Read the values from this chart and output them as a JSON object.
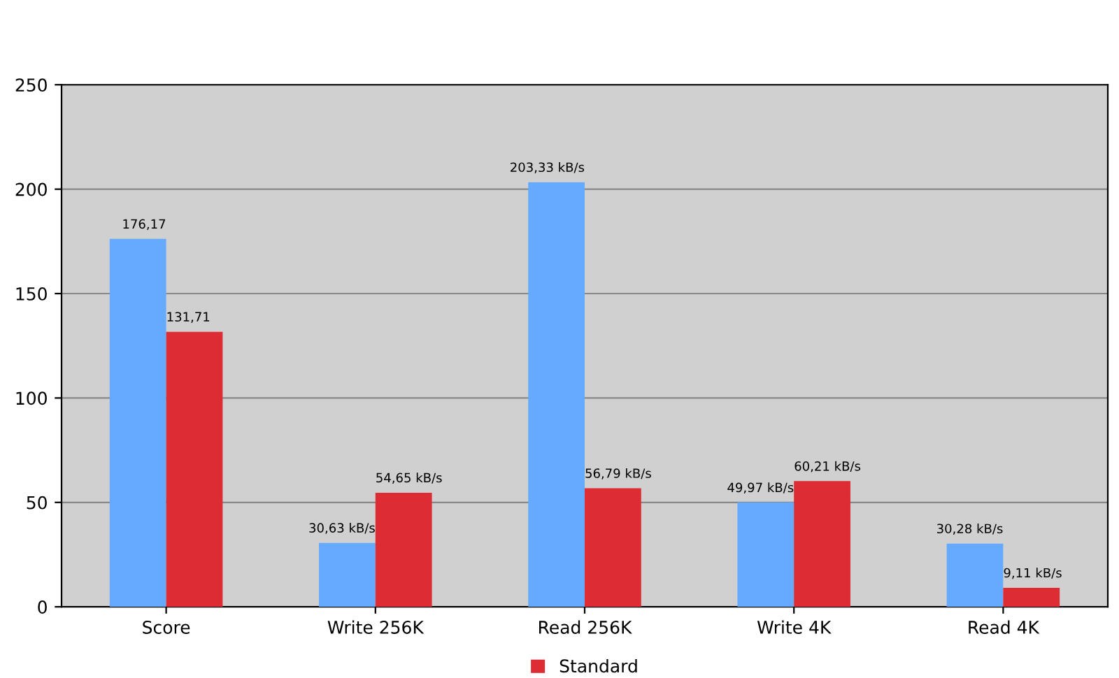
{
  "chart_data": {
    "type": "bar",
    "categories": [
      "Score",
      "Write 256K",
      "Read 256K",
      "Write 4K",
      "Read 4K"
    ],
    "series": [
      {
        "color": "#66aaff",
        "values": [
          176.17,
          30.63,
          203.33,
          49.97,
          30.28
        ],
        "value_labels": [
          "176,17",
          "30,63 kB/s",
          "203,33 kB/s",
          "49,97 kB/s",
          "30,28 kB/s"
        ]
      },
      {
        "name": "Standard",
        "color": "#dd2c33",
        "values": [
          131.71,
          54.65,
          56.79,
          60.21,
          9.11
        ],
        "value_labels": [
          "131,71",
          "54,65 kB/s",
          "56,79 kB/s",
          "60,21 kB/s",
          "9,11 kB/s"
        ]
      }
    ],
    "ylim": [
      0,
      250
    ],
    "yticks": [
      0,
      50,
      100,
      150,
      200,
      250
    ],
    "grid": "y",
    "legend": "bottom"
  }
}
